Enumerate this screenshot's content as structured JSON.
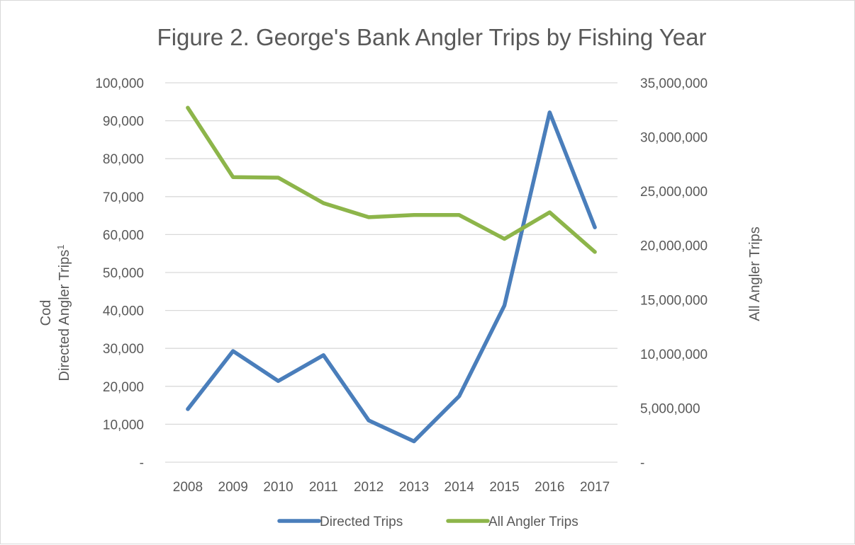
{
  "chart_data": {
    "type": "line",
    "title": "Figure 2. George's Bank Angler Trips by Fishing Year",
    "categories": [
      "2008",
      "2009",
      "2010",
      "2011",
      "2012",
      "2013",
      "2014",
      "2015",
      "2016",
      "2017"
    ],
    "y_left": {
      "label_line1": "Cod",
      "label_line2": "Directed Angler Trips",
      "label_superscript": "1",
      "range": [
        0,
        100000
      ],
      "ticks": [
        0,
        10000,
        20000,
        30000,
        40000,
        50000,
        60000,
        70000,
        80000,
        90000,
        100000
      ],
      "tick_labels": [
        "-",
        "10,000",
        "20,000",
        "30,000",
        "40,000",
        "50,000",
        "60,000",
        "70,000",
        "80,000",
        "90,000",
        "100,000"
      ]
    },
    "y_right": {
      "label": "All Angler Trips",
      "range": [
        0,
        35000000
      ],
      "ticks": [
        0,
        5000000,
        10000000,
        15000000,
        20000000,
        25000000,
        30000000,
        35000000
      ],
      "tick_labels": [
        "-",
        "5,000,000",
        "10,000,000",
        "15,000,000",
        "20,000,000",
        "25,000,000",
        "30,000,000",
        "35,000,000"
      ]
    },
    "series": [
      {
        "name": "Directed  Trips",
        "axis": "left",
        "color": "#4a7ebb",
        "values": [
          14000,
          29300,
          21400,
          28200,
          11000,
          5500,
          17400,
          41300,
          92200,
          61900
        ]
      },
      {
        "name": "All Angler Trips",
        "axis": "right",
        "color": "#8db54a",
        "values": [
          32700000,
          26300000,
          26250000,
          23900000,
          22600000,
          22800000,
          22800000,
          20600000,
          23050000,
          19400000
        ]
      }
    ],
    "grid": true,
    "legend_position": "bottom"
  }
}
